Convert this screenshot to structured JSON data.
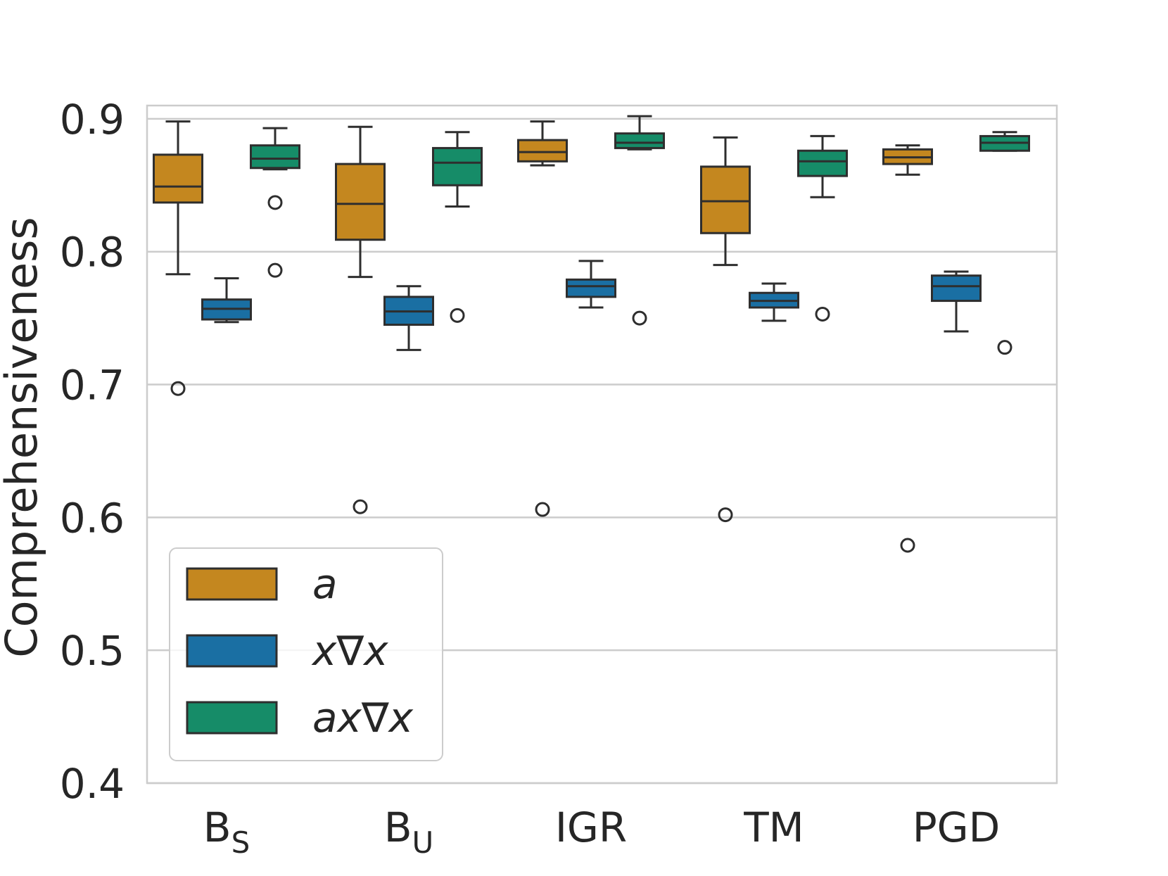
{
  "chart_data": {
    "type": "box",
    "title": "",
    "xlabel": "",
    "ylabel": "Comprehensiveness",
    "ylim": [
      0.4,
      0.91
    ],
    "yticks": [
      "0.4",
      "0.5",
      "0.6",
      "0.7",
      "0.8",
      "0.9"
    ],
    "grid": "horizontal",
    "legend_position": "lower-left",
    "categories": [
      {
        "main": "B",
        "sub": "S"
      },
      {
        "main": "B",
        "sub": "U"
      },
      {
        "main": "IGR",
        "sub": ""
      },
      {
        "main": "TM",
        "sub": ""
      },
      {
        "main": "PGD",
        "sub": ""
      }
    ],
    "series": [
      {
        "name": "a",
        "color": "#c4871f",
        "boxes": [
          {
            "whislo": 0.783,
            "q1": 0.837,
            "med": 0.849,
            "q3": 0.873,
            "whishi": 0.898,
            "fliers": [
              0.697
            ]
          },
          {
            "whislo": 0.781,
            "q1": 0.809,
            "med": 0.836,
            "q3": 0.866,
            "whishi": 0.894,
            "fliers": [
              0.608
            ]
          },
          {
            "whislo": 0.865,
            "q1": 0.868,
            "med": 0.875,
            "q3": 0.884,
            "whishi": 0.898,
            "fliers": [
              0.606
            ]
          },
          {
            "whislo": 0.79,
            "q1": 0.814,
            "med": 0.838,
            "q3": 0.864,
            "whishi": 0.886,
            "fliers": [
              0.602
            ]
          },
          {
            "whislo": 0.858,
            "q1": 0.866,
            "med": 0.871,
            "q3": 0.877,
            "whishi": 0.88,
            "fliers": [
              0.579
            ]
          }
        ]
      },
      {
        "name": "x∇x",
        "color": "#1a6fa3",
        "boxes": [
          {
            "whislo": 0.747,
            "q1": 0.749,
            "med": 0.757,
            "q3": 0.764,
            "whishi": 0.78,
            "fliers": []
          },
          {
            "whislo": 0.726,
            "q1": 0.745,
            "med": 0.755,
            "q3": 0.766,
            "whishi": 0.774,
            "fliers": []
          },
          {
            "whislo": 0.758,
            "q1": 0.766,
            "med": 0.774,
            "q3": 0.779,
            "whishi": 0.793,
            "fliers": []
          },
          {
            "whislo": 0.748,
            "q1": 0.758,
            "med": 0.763,
            "q3": 0.769,
            "whishi": 0.776,
            "fliers": []
          },
          {
            "whislo": 0.74,
            "q1": 0.763,
            "med": 0.774,
            "q3": 0.782,
            "whishi": 0.785,
            "fliers": []
          }
        ]
      },
      {
        "name": "ax∇x",
        "color": "#168c68",
        "boxes": [
          {
            "whislo": 0.862,
            "q1": 0.863,
            "med": 0.87,
            "q3": 0.88,
            "whishi": 0.893,
            "fliers": [
              0.837,
              0.786
            ]
          },
          {
            "whislo": 0.834,
            "q1": 0.85,
            "med": 0.867,
            "q3": 0.878,
            "whishi": 0.89,
            "fliers": [
              0.752
            ]
          },
          {
            "whislo": 0.877,
            "q1": 0.878,
            "med": 0.882,
            "q3": 0.889,
            "whishi": 0.902,
            "fliers": [
              0.75
            ]
          },
          {
            "whislo": 0.841,
            "q1": 0.857,
            "med": 0.868,
            "q3": 0.876,
            "whishi": 0.887,
            "fliers": [
              0.753
            ]
          },
          {
            "whislo": 0.876,
            "q1": 0.876,
            "med": 0.882,
            "q3": 0.887,
            "whishi": 0.89,
            "fliers": [
              0.728
            ]
          }
        ]
      }
    ]
  }
}
